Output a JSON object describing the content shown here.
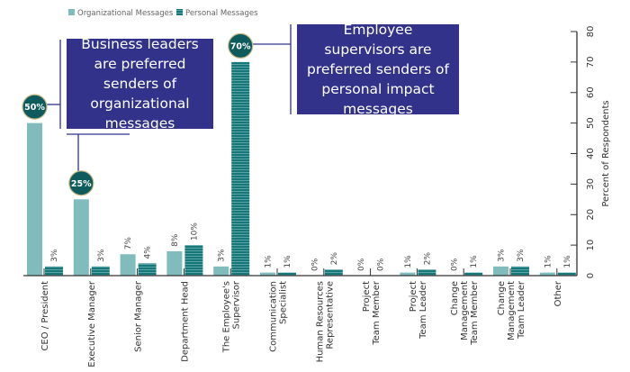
{
  "chart_data": {
    "type": "bar",
    "categories": [
      [
        "CEO / President"
      ],
      [
        "Executive Manager"
      ],
      [
        "Senior Manager"
      ],
      [
        "Department Head"
      ],
      [
        "The Employee's",
        "Supervisor"
      ],
      [
        "Communication",
        "Specialist"
      ],
      [
        "Human Resources",
        "Representative"
      ],
      [
        "Project",
        "Team Member"
      ],
      [
        "Project",
        "Team Leader"
      ],
      [
        "Change",
        "Management",
        "Team Member"
      ],
      [
        "Change",
        "Management",
        "Team Leader"
      ],
      [
        "Other"
      ]
    ],
    "series": [
      {
        "name": "Organizational Messages",
        "color": "#80bcbc",
        "values": [
          50,
          25,
          7,
          8,
          3,
          1,
          0,
          0,
          1,
          0,
          3,
          1
        ],
        "labels": [
          "50%",
          "25%",
          "7%",
          "8%",
          "3%",
          "1%",
          "0%",
          "0%",
          "1%",
          "0%",
          "3%",
          "1%"
        ]
      },
      {
        "name": "Personal Messages",
        "color": "#17787a",
        "values": [
          3,
          3,
          4,
          10,
          70,
          1,
          2,
          0,
          2,
          1,
          3,
          1
        ],
        "labels": [
          "3%",
          "3%",
          "4%",
          "10%",
          "70%",
          "1%",
          "2%",
          "0%",
          "2%",
          "1%",
          "3%",
          "1%"
        ]
      }
    ],
    "ylabel": "Percent of Respondents",
    "ylim": [
      0,
      80
    ],
    "yticks": [
      "0",
      "10",
      "20",
      "30",
      "40",
      "50",
      "60",
      "70",
      "80"
    ],
    "axis_position": "right",
    "legend_position": "top-left",
    "grid": false,
    "annotations": [
      "Business leaders are preferred senders of organizational messages",
      "Employee supervisors are preferred senders of personal impact messages"
    ],
    "highlight_bubble_color": "#0d5b5c"
  }
}
